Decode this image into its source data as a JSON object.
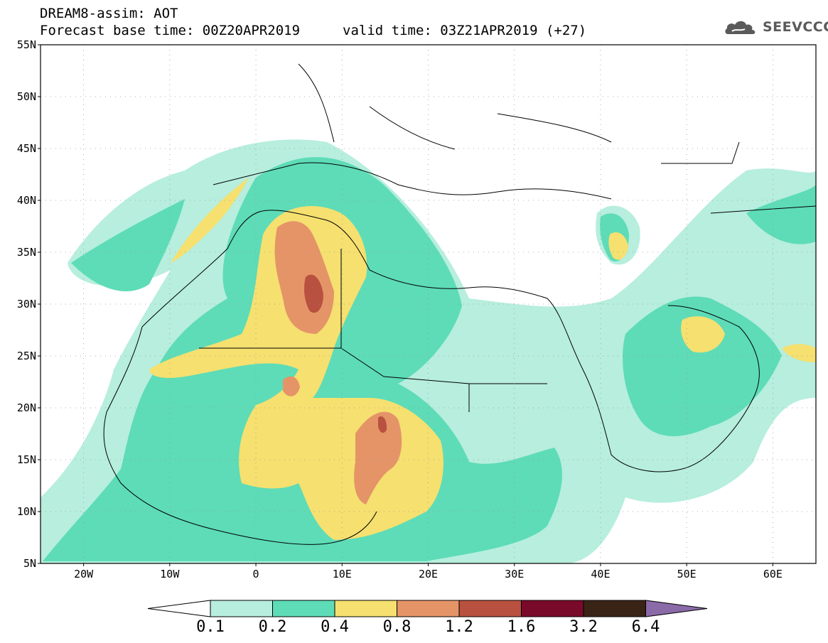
{
  "header": {
    "model_title": "DREAM8-assim: AOT",
    "base_time": "Forecast base time: 00Z20APR2019",
    "valid_time": "valid time: 03Z21APR2019 (+27)"
  },
  "logo": {
    "text": "SEEVCCC",
    "icon": "cloud-icon"
  },
  "map": {
    "lon_labels": [
      "20W",
      "10W",
      "0",
      "10E",
      "20E",
      "30E",
      "40E",
      "50E",
      "60E"
    ],
    "lat_labels": [
      "55N",
      "50N",
      "45N",
      "40N",
      "35N",
      "30N",
      "25N",
      "20N",
      "15N",
      "10N",
      "5N"
    ],
    "lon_range": [
      -25,
      65
    ],
    "lat_range": [
      5,
      55
    ],
    "grid": "dotted"
  },
  "colorbar": {
    "labels": [
      "0.1",
      "0.2",
      "0.4",
      "0.8",
      "1.2",
      "1.6",
      "3.2",
      "6.4"
    ],
    "colors": [
      "#b7eedd",
      "#5ddcb7",
      "#f5e070",
      "#e59468",
      "#b8513f",
      "#7a0a2a",
      "#3a2416",
      "#8b6aa8"
    ],
    "left_extend_color": "#ffffff"
  }
}
